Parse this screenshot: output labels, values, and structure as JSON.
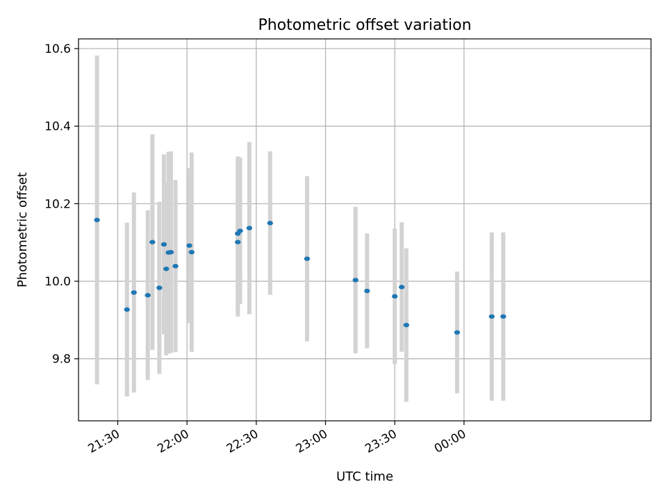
{
  "chart_data": {
    "type": "scatter",
    "title": "Photometric offset variation",
    "xlabel": "UTC time",
    "ylabel": "Photometric offset",
    "x_axis_type": "time",
    "xlim": [
      "21:13",
      "01:21"
    ],
    "ylim": [
      9.64,
      10.625
    ],
    "x_ticks": [
      "21:30",
      "22:00",
      "22:30",
      "23:00",
      "23:30",
      "00:00"
    ],
    "y_ticks": [
      9.8,
      10.0,
      10.2,
      10.4,
      10.6
    ],
    "grid": true,
    "legend": "none",
    "point_color": "#1f77b4",
    "errorbar_color": "#d3d3d3",
    "points": [
      {
        "x": "21:21",
        "y": 10.158,
        "err": 0.424
      },
      {
        "x": "21:34",
        "y": 9.927,
        "err": 0.224
      },
      {
        "x": "21:37",
        "y": 9.971,
        "err": 0.258
      },
      {
        "x": "21:43",
        "y": 9.964,
        "err": 0.219
      },
      {
        "x": "21:45",
        "y": 10.101,
        "err": 0.278
      },
      {
        "x": "21:48",
        "y": 9.983,
        "err": 0.222
      },
      {
        "x": "21:50",
        "y": 10.095,
        "err": 0.232
      },
      {
        "x": "21:51",
        "y": 10.032,
        "err": 0.223
      },
      {
        "x": "21:52",
        "y": 10.074,
        "err": 0.26
      },
      {
        "x": "21:53",
        "y": 10.075,
        "err": 0.26
      },
      {
        "x": "21:55",
        "y": 10.039,
        "err": 0.222
      },
      {
        "x": "22:01",
        "y": 10.092,
        "err": 0.2
      },
      {
        "x": "22:02",
        "y": 10.075,
        "err": 0.257
      },
      {
        "x": "22:22",
        "y": 10.101,
        "err": 0.192
      },
      {
        "x": "22:22",
        "y": 10.123,
        "err": 0.199
      },
      {
        "x": "22:23",
        "y": 10.13,
        "err": 0.189
      },
      {
        "x": "22:27",
        "y": 10.137,
        "err": 0.222
      },
      {
        "x": "22:36",
        "y": 10.15,
        "err": 0.185
      },
      {
        "x": "22:52",
        "y": 10.058,
        "err": 0.213
      },
      {
        "x": "23:13",
        "y": 10.003,
        "err": 0.189
      },
      {
        "x": "23:18",
        "y": 9.975,
        "err": 0.148
      },
      {
        "x": "23:30",
        "y": 9.961,
        "err": 0.175
      },
      {
        "x": "23:33",
        "y": 9.985,
        "err": 0.167
      },
      {
        "x": "23:35",
        "y": 9.887,
        "err": 0.198
      },
      {
        "x": "23:57",
        "y": 9.868,
        "err": 0.157
      },
      {
        "x": "00:12",
        "y": 9.909,
        "err": 0.217
      },
      {
        "x": "00:17",
        "y": 9.909,
        "err": 0.217
      }
    ]
  }
}
